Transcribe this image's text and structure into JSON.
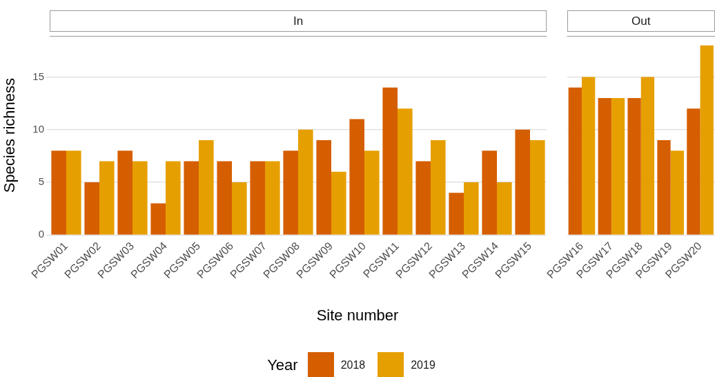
{
  "chart_data": [
    {
      "type": "bar",
      "title": "In",
      "xlabel": "Site number",
      "ylabel": "Species richness",
      "legend_title": "Year",
      "legend": "bottom",
      "grid": "y",
      "categories": [
        "PGSW01",
        "PGSW02",
        "PGSW03",
        "PGSW04",
        "PGSW05",
        "PGSW06",
        "PGSW07",
        "PGSW08",
        "PGSW09",
        "PGSW10",
        "PGSW11",
        "PGSW12",
        "PGSW13",
        "PGSW14",
        "PGSW15"
      ],
      "series": [
        {
          "name": "2018",
          "color": "#d55e00",
          "values": [
            8,
            5,
            8,
            3,
            7,
            7,
            7,
            8,
            9,
            11,
            14,
            7,
            4,
            8,
            10
          ]
        },
        {
          "name": "2019",
          "color": "#e69f00",
          "values": [
            8,
            7,
            7,
            7,
            9,
            5,
            7,
            10,
            6,
            8,
            12,
            9,
            5,
            5,
            9
          ]
        }
      ],
      "ylim": [
        0,
        18.9
      ],
      "yticks": [
        0,
        5,
        10,
        15
      ]
    },
    {
      "type": "bar",
      "title": "Out",
      "grid": "y",
      "tick_labels": "x",
      "categories": [
        "PGSW16",
        "PGSW17",
        "PGSW18",
        "PGSW19",
        "PGSW20"
      ],
      "series": [
        {
          "name": "2018",
          "color": "#d55e00",
          "values": [
            14,
            13,
            13,
            9,
            12
          ]
        },
        {
          "name": "2019",
          "color": "#e69f00",
          "values": [
            15,
            13,
            15,
            8,
            18
          ]
        }
      ],
      "ylim": [
        0,
        18.9
      ],
      "yticks": [
        0,
        5,
        10,
        15
      ]
    }
  ]
}
